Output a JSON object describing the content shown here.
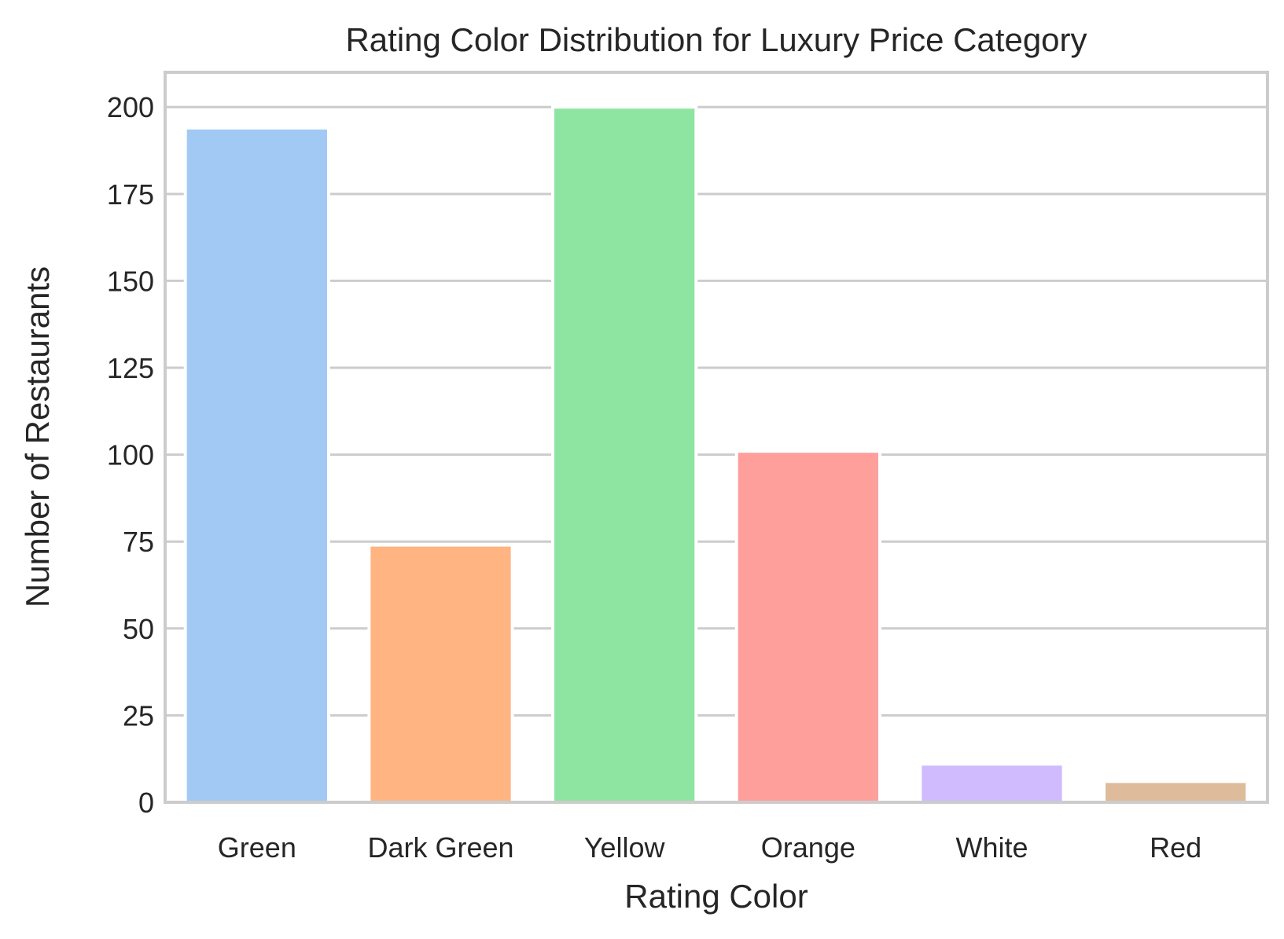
{
  "chart_data": {
    "type": "bar",
    "title": "Rating Color Distribution for Luxury Price Category",
    "xlabel": "Rating Color",
    "ylabel": "Number of Restaurants",
    "categories": [
      "Green",
      "Dark Green",
      "Yellow",
      "Orange",
      "White",
      "Red"
    ],
    "values": [
      194,
      74,
      200,
      101,
      11,
      6
    ],
    "colors": [
      "#a1c9f4",
      "#ffb482",
      "#8de5a1",
      "#ff9f9b",
      "#d0bbff",
      "#debb9b"
    ],
    "ylim": [
      0,
      210
    ],
    "yticks": [
      0,
      25,
      50,
      75,
      100,
      125,
      150,
      175,
      200
    ],
    "grid": true,
    "grid_color": "#cccccc",
    "frame_color": "#cccccc"
  }
}
